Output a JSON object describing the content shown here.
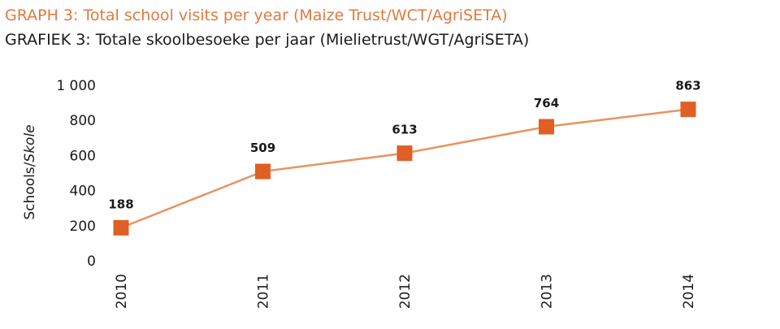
{
  "chart_data": {
    "type": "line",
    "title": "GRAPH 3: Total school visits per year (Maize Trust/WCT/AgriSETA)",
    "subtitle": "GRAFIEK 3: Totale skoolbesoeke per jaar (Mielietrust/WGT/AgriSETA)",
    "ylabel_main": "Schools/",
    "ylabel_italic": "Skole",
    "categories": [
      "2010",
      "2011",
      "2012",
      "2013",
      "2014"
    ],
    "values": [
      188,
      509,
      613,
      764,
      863
    ],
    "data_labels": [
      "188",
      "509",
      "613",
      "764",
      "863"
    ],
    "ylim": [
      0,
      1000
    ],
    "yticks": [
      0,
      200,
      400,
      600,
      800,
      1000
    ],
    "ytick_labels": [
      "0",
      "200",
      "400",
      "600",
      "800",
      "1 000"
    ],
    "grid": false,
    "colors": {
      "line": "#e8935f",
      "marker": "#e05f24",
      "title": "#e07a3f"
    }
  }
}
